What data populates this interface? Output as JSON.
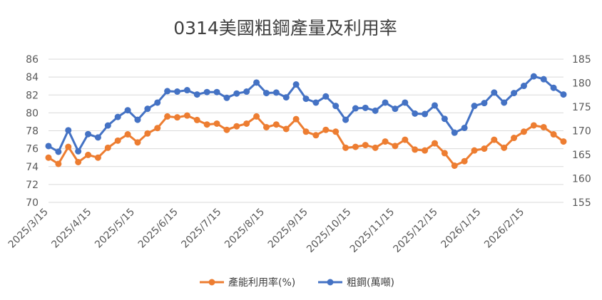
{
  "chart_data": {
    "type": "line",
    "title": "0314美國粗鋼產量及利用率",
    "xlabel": "",
    "ylabel_left": "",
    "ylabel_right": "",
    "ylim_left": [
      70,
      86
    ],
    "yticks_left": [
      "70",
      "72",
      "74",
      "76",
      "78",
      "80",
      "82",
      "84",
      "86"
    ],
    "ylim_right": [
      155,
      185
    ],
    "yticks_right": [
      "155",
      "160",
      "165",
      "170",
      "175",
      "180",
      "185"
    ],
    "x_tick_labels": [
      "2025/3/15",
      "2025/4/15",
      "2025/5/15",
      "2025/6/15",
      "2025/7/15",
      "2025/8/15",
      "2025/9/15",
      "2025/10/15",
      "2025/11/15",
      "2025/12/15",
      "2026/1/15",
      "2026/2/15"
    ],
    "grid": true,
    "legend_position": "bottom",
    "series": [
      {
        "name": "產能利用率(%)",
        "axis": "left",
        "color": "#ED7D31",
        "values": [
          75.0,
          74.3,
          76.2,
          74.5,
          75.3,
          75.0,
          76.1,
          76.9,
          77.6,
          76.7,
          77.7,
          78.3,
          79.6,
          79.5,
          79.7,
          79.2,
          78.7,
          78.8,
          78.1,
          78.5,
          78.8,
          79.6,
          78.4,
          78.7,
          78.2,
          79.3,
          77.9,
          77.5,
          78.1,
          77.9,
          76.1,
          76.2,
          76.4,
          76.1,
          76.8,
          76.3,
          77.0,
          75.9,
          75.8,
          76.6,
          75.5,
          74.1,
          74.6,
          75.8,
          76.0,
          77.0,
          76.1,
          77.2,
          77.9,
          78.6,
          78.4,
          77.6,
          76.8
        ]
      },
      {
        "name": "粗鋼(萬噸)",
        "axis": "right",
        "color": "#4472C4",
        "values": [
          166.8,
          165.6,
          170.1,
          165.7,
          169.3,
          168.6,
          171.1,
          172.9,
          174.3,
          172.3,
          174.6,
          175.9,
          178.3,
          178.2,
          178.5,
          177.6,
          178.1,
          178.1,
          176.9,
          177.8,
          178.2,
          180.1,
          177.9,
          178.0,
          177.0,
          179.7,
          176.7,
          175.9,
          177.2,
          175.2,
          172.3,
          174.7,
          174.8,
          174.2,
          175.9,
          174.6,
          175.9,
          173.6,
          173.5,
          175.3,
          172.5,
          169.6,
          170.6,
          175.2,
          175.8,
          178.0,
          175.9,
          177.9,
          179.4,
          181.4,
          180.8,
          179.0,
          177.6
        ]
      }
    ]
  }
}
